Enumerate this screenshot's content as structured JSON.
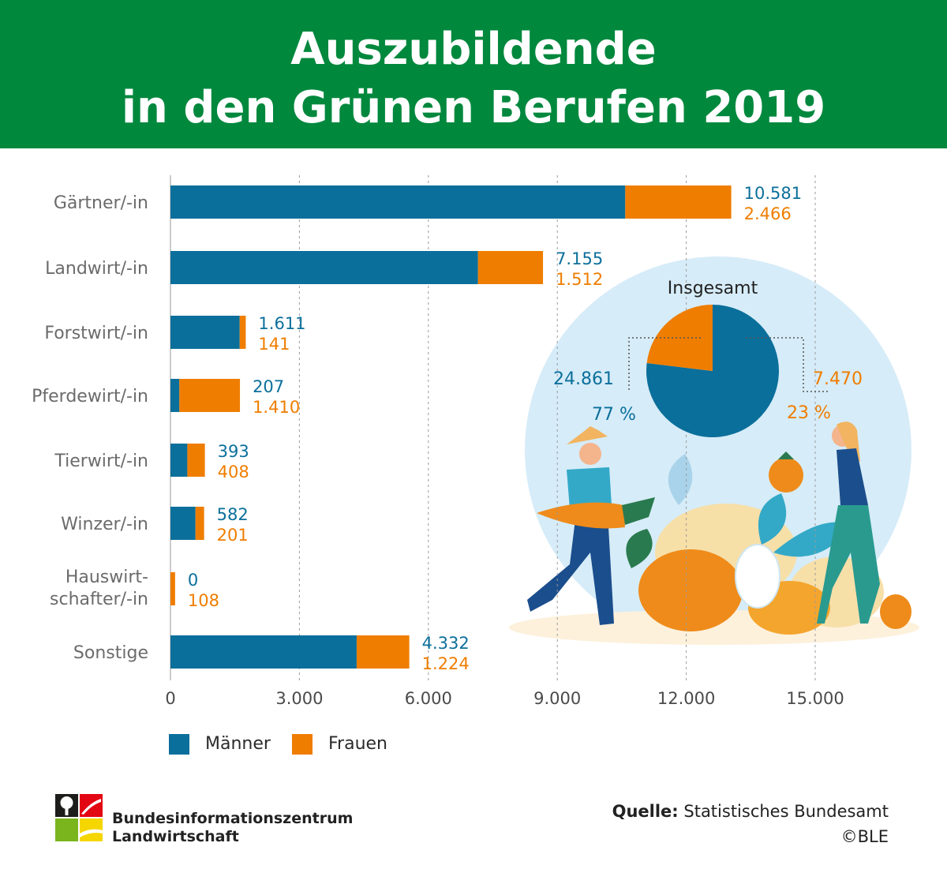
{
  "header": {
    "title_line1": "Auszubildende",
    "title_line2": "in den Grünen Berufen 2019"
  },
  "colors": {
    "header_bg": "#00883d",
    "maenner": "#0b6f9b",
    "frauen": "#ef7d00",
    "circle_bg": "#d6ecf8"
  },
  "chart_data": {
    "type": "bar",
    "orientation": "horizontal",
    "stacked": true,
    "categories": [
      "Gärtner/-in",
      "Landwirt/-in",
      "Forstwirt/-in",
      "Pferdewirt/-in",
      "Tierwirt/-in",
      "Winzer/-in",
      "Hauswirt-\nschafter/-in",
      "Sonstige"
    ],
    "series": [
      {
        "name": "Männer",
        "values": [
          10581,
          7155,
          1611,
          207,
          393,
          582,
          0,
          4332
        ],
        "labels": [
          "10.581",
          "7.155",
          "1.611",
          "207",
          "393",
          "582",
          "0",
          "4.332"
        ]
      },
      {
        "name": "Frauen",
        "values": [
          2466,
          1512,
          141,
          1410,
          408,
          201,
          108,
          1224
        ],
        "labels": [
          "2.466",
          "1.512",
          "141",
          "1.410",
          "408",
          "201",
          "108",
          "1.224"
        ]
      }
    ],
    "xlim": [
      0,
      15000
    ],
    "ticks": [
      0,
      3000,
      6000,
      9000,
      12000,
      15000
    ],
    "tick_labels": [
      "0",
      "3.000",
      "6.000",
      "9.000",
      "12.000",
      "15.000"
    ],
    "grid": true,
    "legend_position": "bottom-left",
    "inset_pie": {
      "title": "Insgesamt",
      "slices": [
        {
          "name": "Männer",
          "value": 24861,
          "value_label": "24.861",
          "percent_label": "77 %"
        },
        {
          "name": "Frauen",
          "value": 7470,
          "value_label": "7.470",
          "percent_label": "23 %"
        }
      ]
    }
  },
  "legend": {
    "maenner": "Männer",
    "frauen": "Frauen"
  },
  "footer": {
    "logo_line1": "Bundesinformationszentrum",
    "logo_line2": "Landwirtschaft",
    "source_label": "Quelle:",
    "source_text": "Statistisches Bundesamt",
    "copyright": "©BLE"
  }
}
